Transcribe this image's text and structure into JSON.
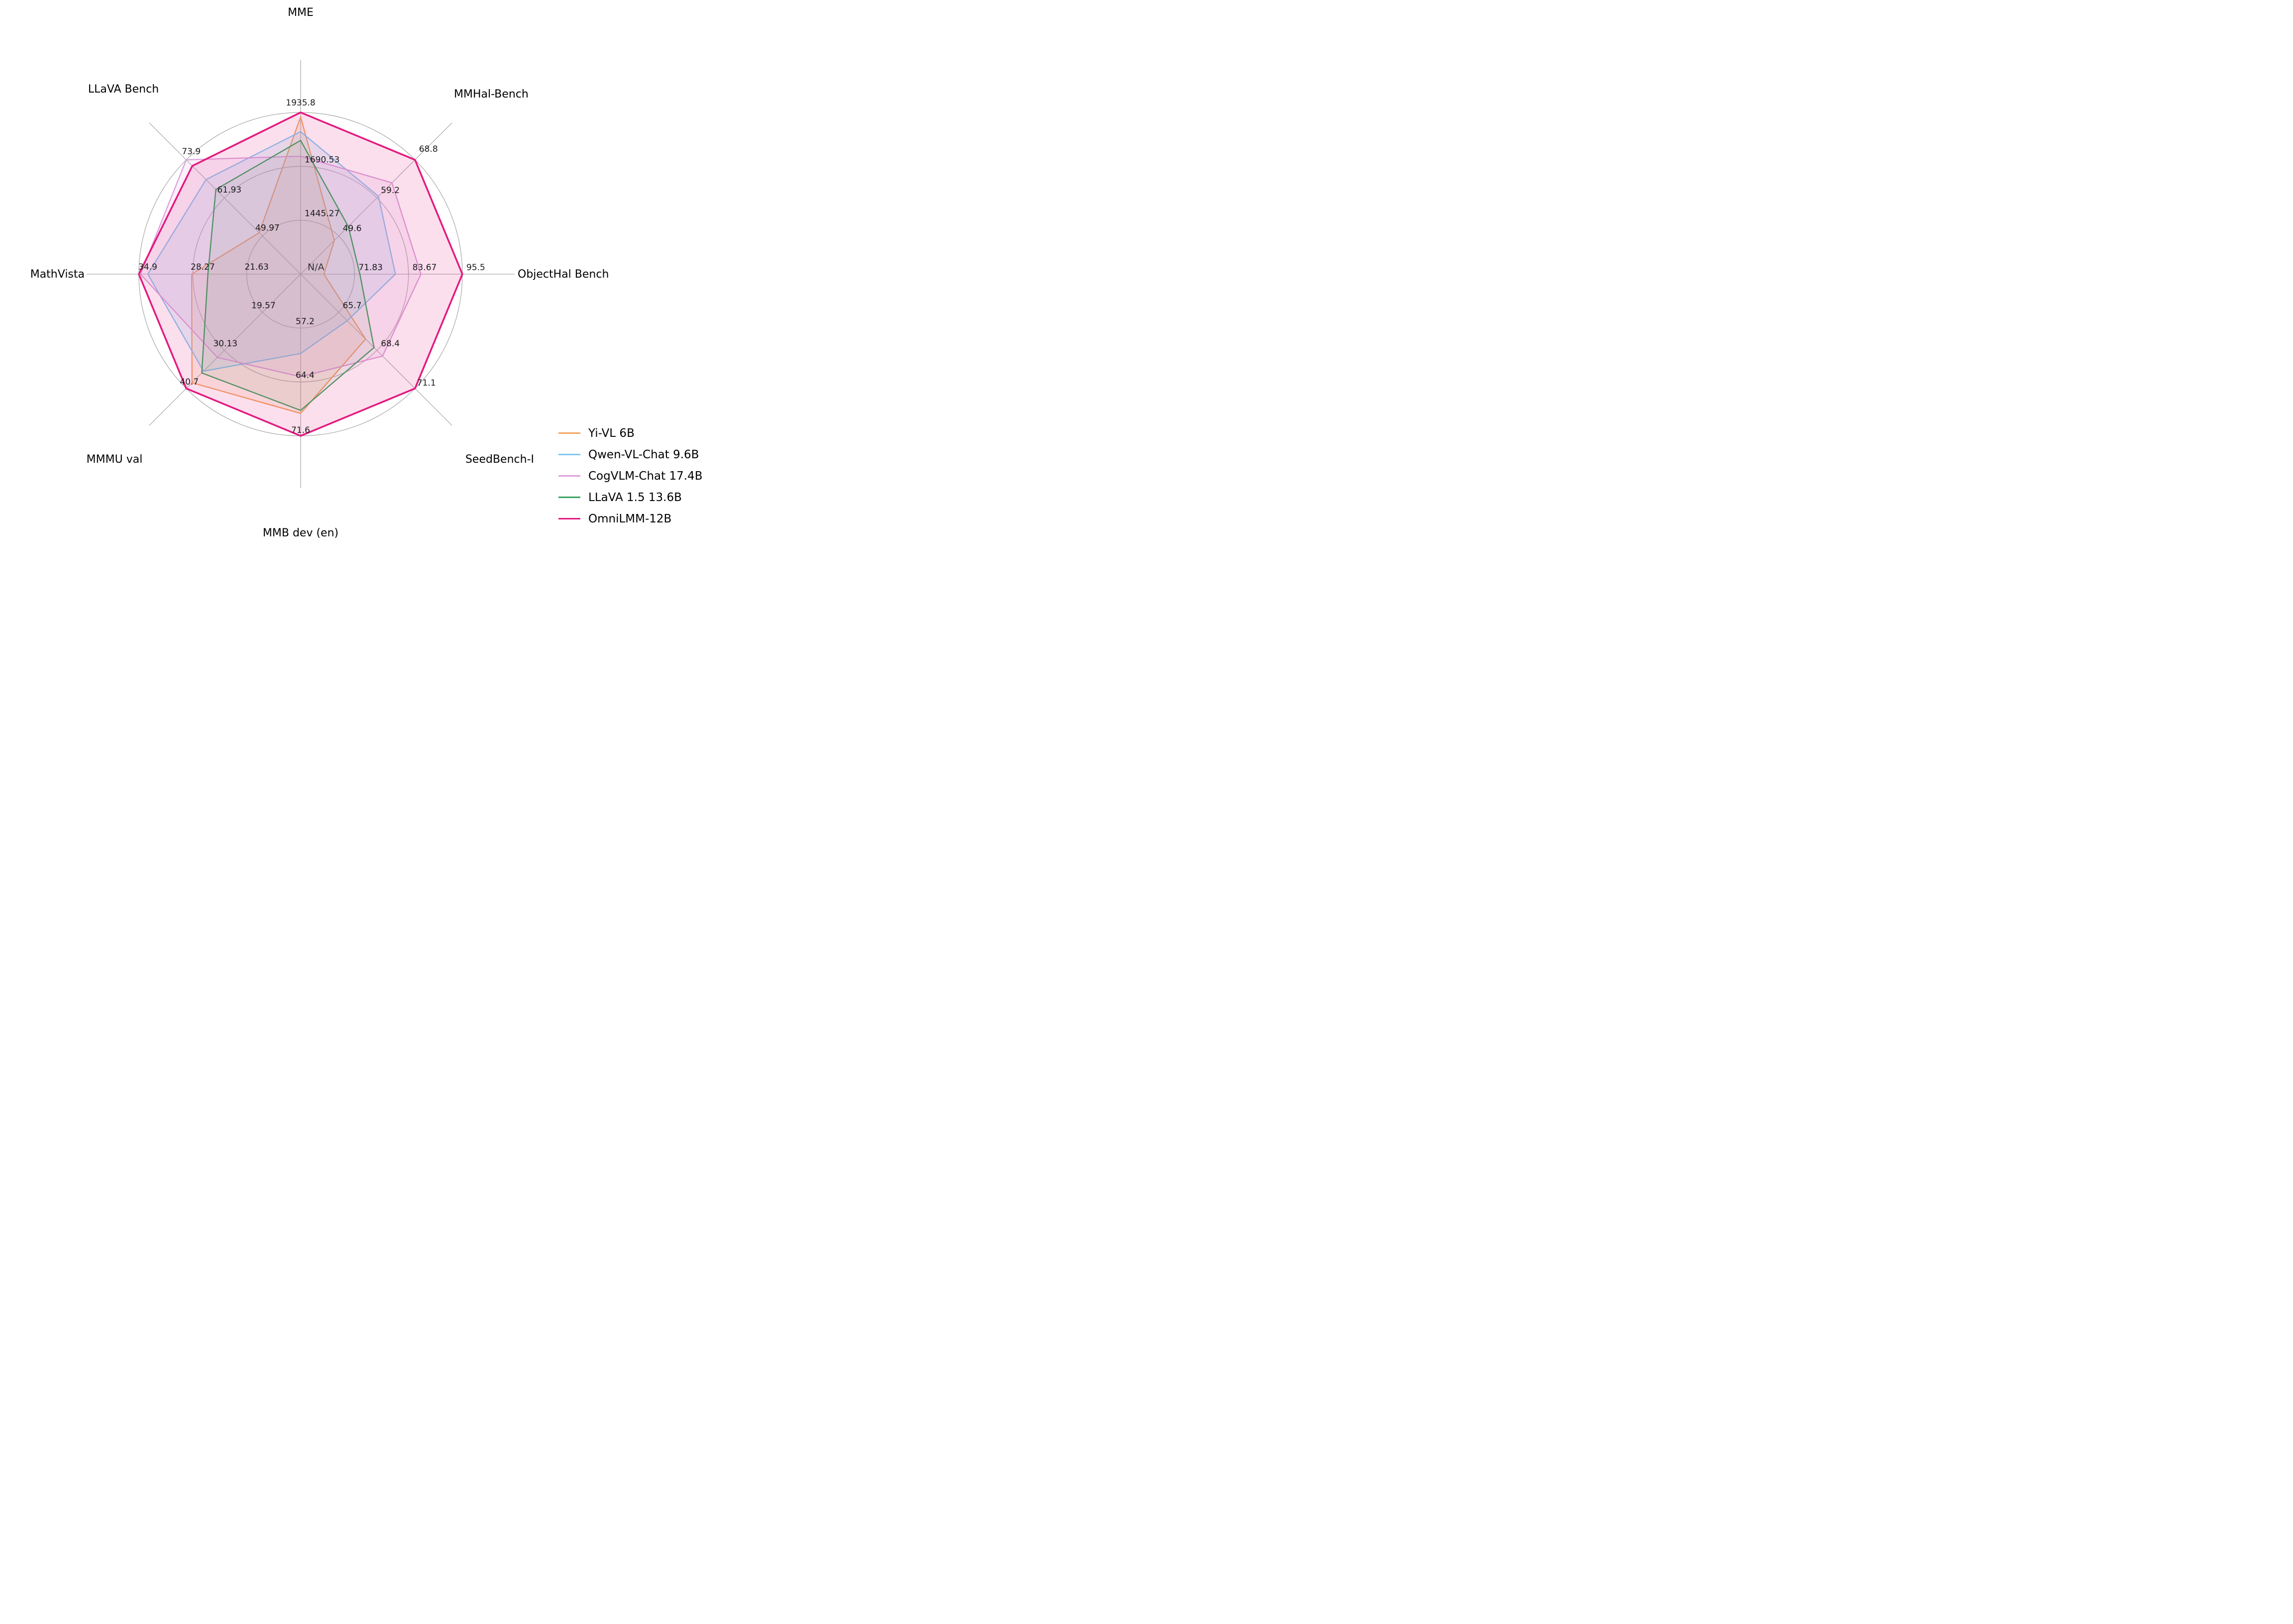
{
  "chart_data": {
    "type": "radar",
    "title": "",
    "grid": true,
    "grid_color": "#ACACAC",
    "text_color": "#111111",
    "legend_position": "lower right",
    "center_label": "N/A",
    "axes": [
      {
        "label": "MME",
        "ticks": [
          1445.27,
          1690.53,
          1935.8
        ],
        "tick_labels": [
          "1445.27",
          "1690.53",
          "1935.8"
        ]
      },
      {
        "label": "MMHal-Bench",
        "ticks": [
          49.6,
          59.2,
          68.8
        ],
        "tick_labels": [
          "49.6",
          "59.2",
          "68.8"
        ]
      },
      {
        "label": "ObjectHal Bench",
        "ticks": [
          71.83,
          83.67,
          95.5
        ],
        "tick_labels": [
          "71.83",
          "83.67",
          "95.5"
        ]
      },
      {
        "label": "SeedBench-I",
        "ticks": [
          65.7,
          68.4,
          71.1
        ],
        "tick_labels": [
          "65.7",
          "68.4",
          "71.1"
        ]
      },
      {
        "label": "MMB dev (en)",
        "ticks": [
          57.2,
          64.4,
          71.6
        ],
        "tick_labels": [
          "57.2",
          "64.4",
          "71.6"
        ]
      },
      {
        "label": "MMMU val",
        "ticks": [
          19.57,
          30.13,
          40.7
        ],
        "tick_labels": [
          "19.57",
          "30.13",
          "40.7"
        ]
      },
      {
        "label": "MathVista",
        "ticks": [
          21.63,
          28.27,
          34.9
        ],
        "tick_labels": [
          "21.63",
          "28.27",
          "34.9"
        ]
      },
      {
        "label": "LLaVA Bench",
        "ticks": [
          49.97,
          61.93,
          73.9
        ],
        "tick_labels": [
          "49.97",
          "61.93",
          "73.9"
        ]
      }
    ],
    "series": [
      {
        "name": "Yi-VL 6B",
        "color": "#F4A460",
        "fill_opacity": 0.15,
        "line_width": 2.3,
        "values": [
          1915.1,
          48.5,
          65.1,
          67.6,
          68.6,
          39.1,
          28.4,
          51.0
        ]
      },
      {
        "name": "Qwen-VL-Chat 9.6B",
        "color": "#82C7F0",
        "fill_opacity": 0.18,
        "line_width": 2.3,
        "values": [
          1848.3,
          59.6,
          80.8,
          66.3,
          60.6,
          35.9,
          33.8,
          67.7
        ]
      },
      {
        "name": "CogVLM-Chat 17.4B",
        "color": "#DDA0DD",
        "fill_opacity": 0.15,
        "line_width": 2.3,
        "values": [
          1736.6,
          63.0,
          86.4,
          68.8,
          63.7,
          32.1,
          34.7,
          73.9
        ]
      },
      {
        "name": "LLaVA 1.5 13.6B",
        "color": "#38A35E",
        "fill_opacity": 0.08,
        "line_width": 2.3,
        "values": [
          1808.4,
          52.0,
          73.0,
          68.2,
          68.2,
          36.4,
          26.4,
          64.6
        ]
      },
      {
        "name": "OmniLMM-12B",
        "color": "#E3197F",
        "fill_opacity": 0.14,
        "line_width": 3.5,
        "values": [
          1935.8,
          68.8,
          95.5,
          71.1,
          71.6,
          40.7,
          34.9,
          72.0
        ]
      }
    ]
  }
}
